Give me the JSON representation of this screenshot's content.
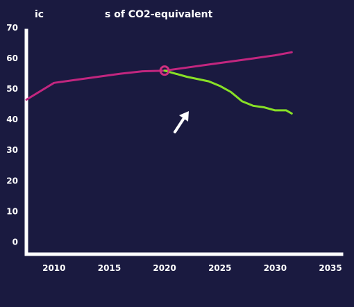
{
  "colors": {
    "background": "#1a1a40",
    "axis": "#ffffff",
    "baseline_series": "#c2267f",
    "reduction_series": "#88e026",
    "marker": "#d0307f",
    "arrow": "#ffffff"
  },
  "chart_data": {
    "type": "line",
    "title_parts": [
      "ic",
      "s of CO2-equivalent"
    ],
    "xlabel": "",
    "ylabel": "",
    "xlim": [
      2007.5,
      2036
    ],
    "ylim": [
      -4,
      70
    ],
    "x_ticks": [
      2010,
      2015,
      2020,
      2025,
      2030,
      2035
    ],
    "y_ticks": [
      0,
      10,
      20,
      30,
      40,
      50,
      60,
      70
    ],
    "grid": false,
    "legend": "none",
    "series": [
      {
        "color": "#c2267f",
        "x": [
          2007.5,
          2010,
          2012,
          2014,
          2016,
          2018,
          2020,
          2022,
          2024,
          2026,
          2028,
          2030,
          2031.5
        ],
        "y": [
          46.5,
          52,
          53,
          54,
          55,
          55.8,
          56,
          57,
          58,
          59,
          60,
          61,
          62
        ]
      },
      {
        "color": "#88e026",
        "x": [
          2020,
          2022,
          2024,
          2025,
          2026,
          2027,
          2028,
          2029,
          2030,
          2031,
          2031.5
        ],
        "y": [
          56,
          54,
          52.5,
          51,
          49,
          46,
          44.5,
          44,
          43,
          43,
          42
        ]
      }
    ],
    "annotations": [
      {
        "type": "circle-marker",
        "x": 2020,
        "y": 56
      },
      {
        "type": "arrow",
        "points_to_series": 1
      }
    ]
  }
}
